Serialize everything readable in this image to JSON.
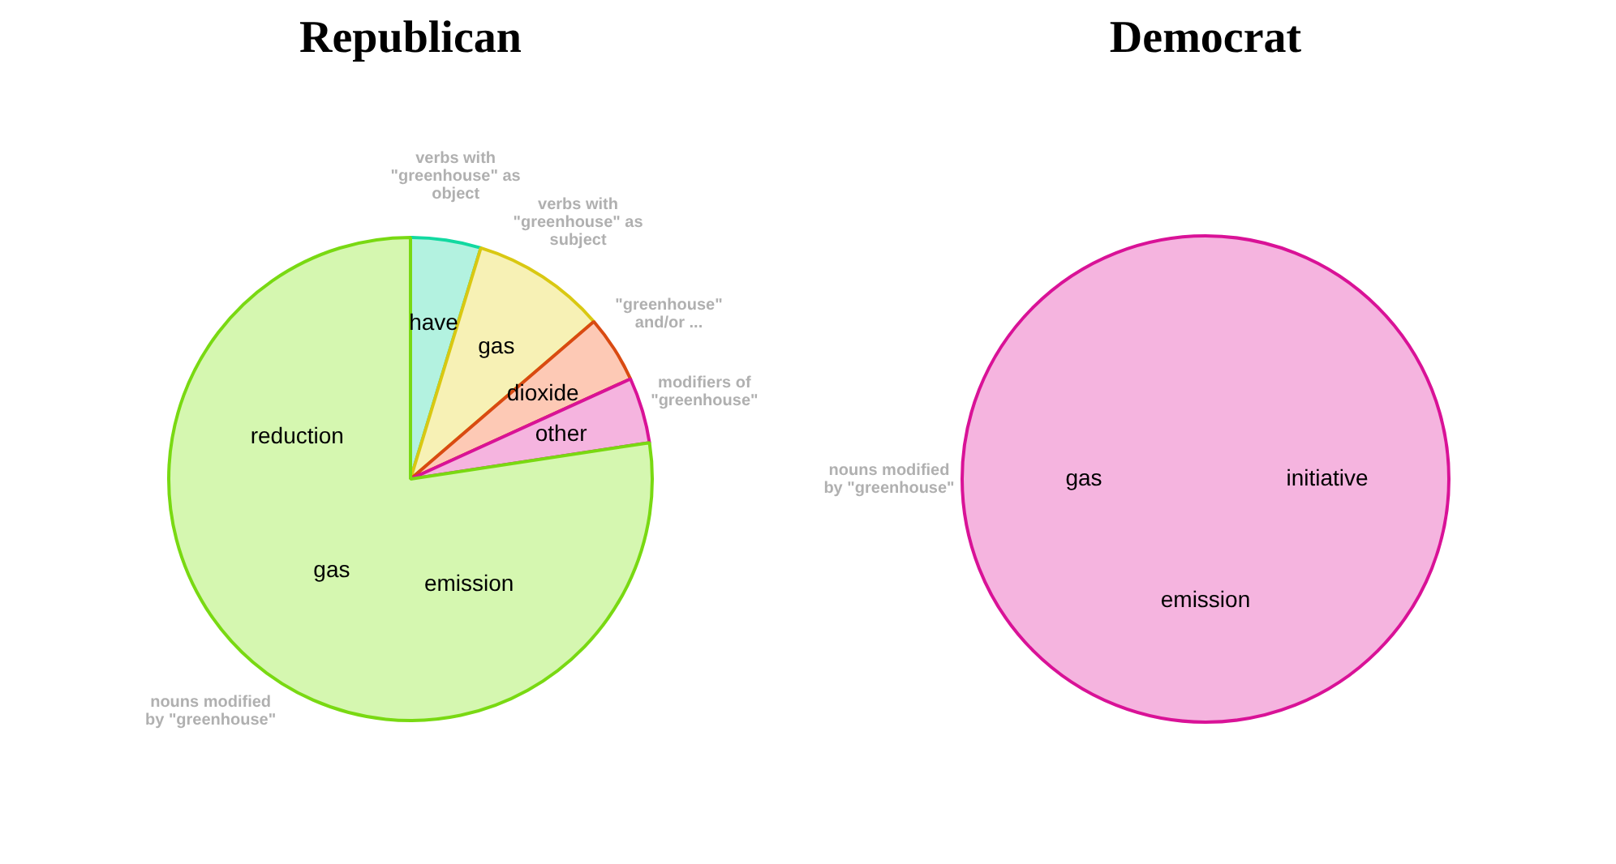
{
  "chart_data": [
    {
      "type": "pie",
      "title": "Republican",
      "categories": [
        "verbs with \"greenhouse\" as object",
        "verbs with \"greenhouse\" as subject",
        "\"greenhouse\" and/or ...",
        "modifiers of \"greenhouse\"",
        "nouns modified by \"greenhouse\""
      ],
      "values": [
        4.7,
        9.0,
        4.5,
        4.4,
        77.4
      ],
      "colors": [
        "#b3f2e0",
        "#f7f1b5",
        "#fdc9b5",
        "#f5b4df",
        "#d5f7b0"
      ],
      "annotations": [
        {
          "text": "have",
          "x": "verbs with \"greenhouse\" as object"
        },
        {
          "text": "gas",
          "x": "verbs with \"greenhouse\" as subject"
        },
        {
          "text": "dioxide",
          "x": "\"greenhouse\" and/or ..."
        },
        {
          "text": "other",
          "x": "modifiers of \"greenhouse\""
        },
        {
          "text": "emission",
          "x": "nouns modified by \"greenhouse\""
        },
        {
          "text": "gas",
          "x": "nouns modified by \"greenhouse\""
        },
        {
          "text": "reduction",
          "x": "nouns modified by \"greenhouse\""
        }
      ],
      "legend": false
    },
    {
      "type": "pie",
      "title": "Democrat",
      "categories": [
        "nouns modified by \"greenhouse\""
      ],
      "values": [
        100
      ],
      "colors": [
        "#f5b4df"
      ],
      "annotations": [
        {
          "text": "initiative",
          "x": "nouns modified by \"greenhouse\""
        },
        {
          "text": "emission",
          "x": "nouns modified by \"greenhouse\""
        },
        {
          "text": "gas",
          "x": "nouns modified by \"greenhouse\""
        }
      ],
      "legend": false
    }
  ]
}
